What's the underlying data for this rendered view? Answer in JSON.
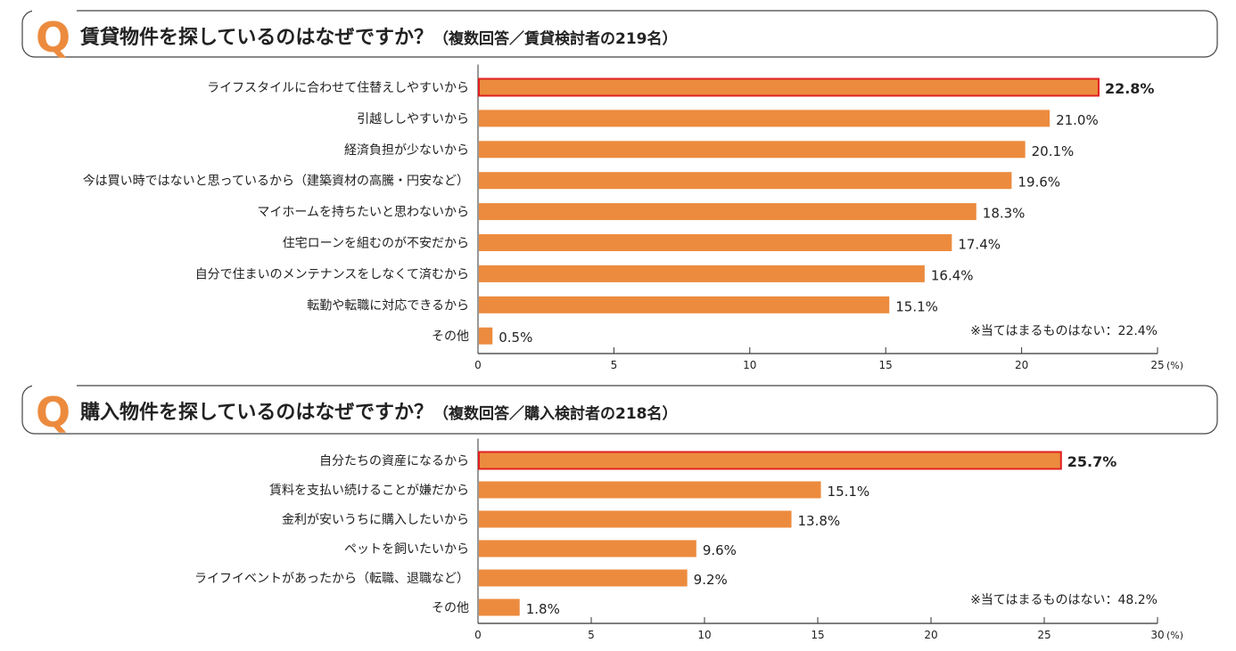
{
  "colors": {
    "bar": "#EC8B3E",
    "highlight_stroke": "#E02020",
    "q_mark": "#EC8B3E",
    "text": "#222222",
    "axis": "#333333"
  },
  "chart_data": [
    {
      "type": "bar",
      "orientation": "horizontal",
      "q_mark": "Q",
      "title": "賃貸物件を探しているのはなぜですか？",
      "subtitle": "（複数回答／賃貸検討者の219名）",
      "categories": [
        "ライフスタイルに合わせて住替えしやすいから",
        "引越ししやすいから",
        "経済負担が少ないから",
        "今は買い時ではないと思っているから（建築資材の高騰・円安など）",
        "マイホームを持ちたいと思わないから",
        "住宅ローンを組むのが不安だから",
        "自分で住まいのメンテナンスをしなくて済むから",
        "転勤や転職に対応できるから",
        "その他"
      ],
      "values": [
        22.8,
        21.0,
        20.1,
        19.6,
        18.3,
        17.4,
        16.4,
        15.1,
        0.5
      ],
      "value_labels": [
        "22.8%",
        "21.0%",
        "20.1%",
        "19.6%",
        "18.3%",
        "17.4%",
        "16.4%",
        "15.1%",
        "0.5%"
      ],
      "highlight_index": 0,
      "xlim": [
        0,
        25
      ],
      "xticks": [
        "0",
        "5",
        "10",
        "15",
        "20",
        "25"
      ],
      "unit": "(%)",
      "note": "※当てはまるものはない：22.4%",
      "grid": false
    },
    {
      "type": "bar",
      "orientation": "horizontal",
      "q_mark": "Q",
      "title": "購入物件を探しているのはなぜですか？",
      "subtitle": "（複数回答／購入検討者の218名）",
      "categories": [
        "自分たちの資産になるから",
        "賃料を支払い続けることが嫌だから",
        "金利が安いうちに購入したいから",
        "ペットを飼いたいから",
        "ライフイベントがあったから（転職、退職など）",
        "その他"
      ],
      "values": [
        25.7,
        15.1,
        13.8,
        9.6,
        9.2,
        1.8
      ],
      "value_labels": [
        "25.7%",
        "15.1%",
        "13.8%",
        "9.6%",
        "9.2%",
        "1.8%"
      ],
      "highlight_index": 0,
      "xlim": [
        0,
        30
      ],
      "xticks": [
        "0",
        "5",
        "10",
        "15",
        "20",
        "25",
        "30"
      ],
      "unit": "(%)",
      "note": "※当てはまるものはない：48.2%",
      "grid": false
    }
  ]
}
